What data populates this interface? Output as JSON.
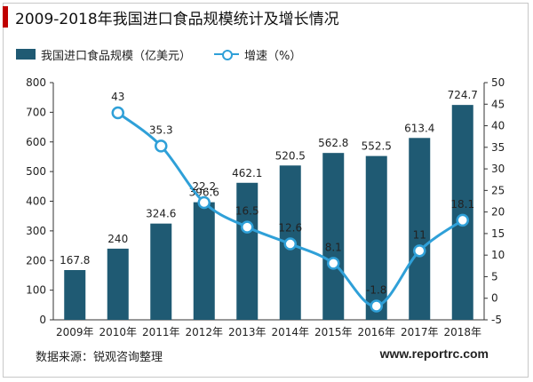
{
  "title": "2009-2018年我国进口食品规模统计及增长情况",
  "source": "数据来源：锐观咨询整理",
  "website": "www.reportrc.com",
  "colors": {
    "accent": "#c00000",
    "bar": "#1f5a73",
    "line": "#2fa0d8"
  },
  "chart_data": {
    "type": "bar",
    "categories": [
      "2009年",
      "2010年",
      "2011年",
      "2012年",
      "2013年",
      "2014年",
      "2015年",
      "2016年",
      "2017年",
      "2018年"
    ],
    "series": [
      {
        "name": "我国进口食品规模（亿美元）",
        "type": "bar",
        "axis": "left",
        "values": [
          167.8,
          240,
          324.6,
          396.6,
          462.1,
          520.5,
          562.8,
          552.5,
          613.4,
          724.7
        ]
      },
      {
        "name": "增速（%）",
        "type": "line",
        "axis": "right",
        "values": [
          null,
          43,
          35.3,
          22.2,
          16.5,
          12.6,
          8.1,
          -1.8,
          11,
          18.1
        ]
      }
    ],
    "y_left": {
      "min": 0,
      "max": 800,
      "ticks": [
        0,
        100,
        200,
        300,
        400,
        500,
        600,
        700,
        800
      ]
    },
    "y_right": {
      "min": -5,
      "max": 50,
      "ticks": [
        -5,
        0,
        5,
        10,
        15,
        20,
        25,
        30,
        35,
        40,
        45,
        50
      ]
    },
    "legend": "top-left",
    "grid": false
  }
}
